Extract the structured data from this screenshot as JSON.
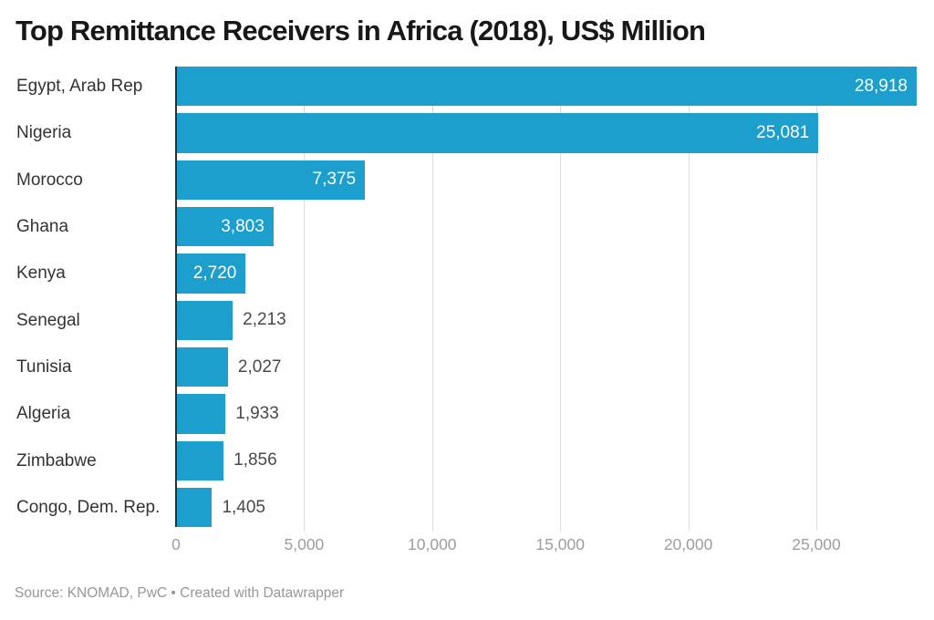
{
  "chart": {
    "title": "Top Remittance Receivers in Africa (2018), US$ Million"
  },
  "chart_data": {
    "type": "bar",
    "orientation": "horizontal",
    "title": "Top Remittance Receivers in Africa (2018), US$ Million",
    "categories": [
      "Egypt, Arab Rep",
      "Nigeria",
      "Morocco",
      "Ghana",
      "Kenya",
      "Senegal",
      "Tunisia",
      "Algeria",
      "Zimbabwe",
      "Congo, Dem. Rep."
    ],
    "values": [
      28918,
      25081,
      7375,
      3803,
      2720,
      2213,
      2027,
      1933,
      1856,
      1405
    ],
    "value_labels": [
      "28,918",
      "25,081",
      "7,375",
      "3,803",
      "2,720",
      "2,213",
      "2,027",
      "1,933",
      "1,856",
      "1,405"
    ],
    "x_tick_values": [
      0,
      5000,
      10000,
      15000,
      20000,
      25000
    ],
    "x_tick_labels": [
      "0",
      "5,000",
      "10,000",
      "15,000",
      "20,000",
      "25,000"
    ],
    "xlim": [
      0,
      28918
    ],
    "xmax": 28918,
    "grid": "vertical",
    "legend": "none"
  },
  "footer": {
    "text": "Source: KNOMAD, PwC • Created with Datawrapper"
  },
  "colors": {
    "bar": "#1C9FCD",
    "axis": "#2E2E2E",
    "grid": "#DDDDDD",
    "title": "#181818",
    "category": "#333333",
    "value_inside": "#FFFFFF",
    "value_outside": "#494949",
    "tick": "#9D9D9D",
    "footer": "#979797",
    "background": "#FFFFFF"
  }
}
